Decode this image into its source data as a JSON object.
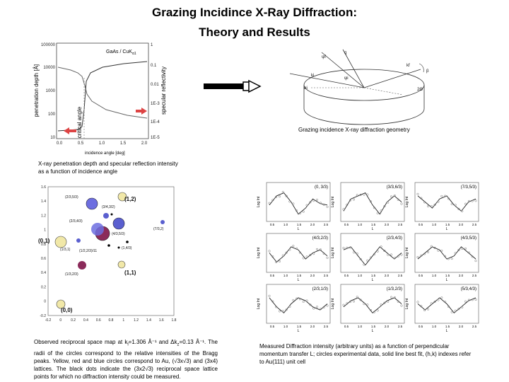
{
  "slide": {
    "title_line1": "Grazing Incidince X-Ray Diffraction:",
    "title_line2": "Theory and Results"
  },
  "penetration_chart": {
    "type": "line",
    "inset_label": "GaAs / CuK",
    "inset_label_sub": "α1",
    "ylabel_left": "penetration depth [Å]",
    "ylabel_right": "specular reflectivity",
    "xlabel": "incidence angle [deg]",
    "left_ticks": [
      "100000",
      "10000",
      "1000",
      "100",
      "10"
    ],
    "right_ticks": [
      "1",
      "0.1",
      "0.01",
      "1E-3",
      "1E-4",
      "1E-5"
    ],
    "x_ticks": [
      "0.0",
      "0.5",
      "1.0",
      "1.5",
      "2.0"
    ],
    "critical_label": "critical angle",
    "caption": "X-ray penetration depth and specular reflection intensity as a function of incidence angle"
  },
  "geometry": {
    "labels": {
      "psi_f": "ψf",
      "q": "q",
      "kf": "kf",
      "ki": "ki",
      "psi_i": "ψi",
      "two_theta": "2Θ",
      "phi": "β",
      "alpha": "αi"
    },
    "caption": "Grazing incidence X-ray diffraction geometry"
  },
  "reciprocal_map": {
    "x_ticks": [
      "-0.2",
      "0",
      "0.2",
      "0.4",
      "0.6",
      "0.8",
      "1",
      "1.2",
      "1.4",
      "1.6",
      "1.8"
    ],
    "y_ticks": [
      "1.6",
      "1.4",
      "1.2",
      "1",
      "0.8",
      "0.6",
      "0.4",
      "0.2",
      "0",
      "-0.2"
    ],
    "big_labels": {
      "p12": "(1,2)",
      "p01": "(0,1)",
      "p11": "(1,1)",
      "p00": "(0,0)"
    },
    "small_labels": [
      "(2/3,5/3)",
      "(3/4,3/2)",
      "(2/3,4/3)",
      "(4/3,5/3)",
      "(7/3,2)",
      "(1/3,1)",
      "(1,4/3)",
      "(1/2,2/3)/11",
      "(1/3,2/3)"
    ],
    "caption_part1": "Observed reciprocal space map at k",
    "caption_k_sub": "l",
    "caption_part2": "=1.306 Å⁻¹ and Δk",
    "caption_dk_sub": "z",
    "caption_part3": "=0.13 Å⁻¹. The radii of the circles correspond to the relative intensities of the Bragg peaks. Yellow, red and blue circles correspond to Au, (√3x√3) and (3x4) lattices. The black dots indicate the (3x2√3) reciprocal space lattice points for which no diffraction intensity could be measured."
  },
  "panels": {
    "ylabel": "Log Int",
    "xlabel": "L",
    "x_ticks": [
      "0.5",
      "1.0",
      "1.5",
      "2.0",
      "2.5"
    ],
    "titles": [
      "(0, 3/3)",
      "(3/3,6/3)",
      "(7/3,5/3)",
      "(4/3,2/3)",
      "(2/3,4/3)",
      "(4/3,5/3)",
      "(2/3,1/3)",
      "(1/3,2/3)",
      "(5/3,4/3)"
    ],
    "caption": "Measured Diffraction intensity (arbitrary units) as a function of perpendicular momentum transfer L; circles experimental data, solid line best fit, (h,k) indexes refer to Au(111) unit cell"
  }
}
